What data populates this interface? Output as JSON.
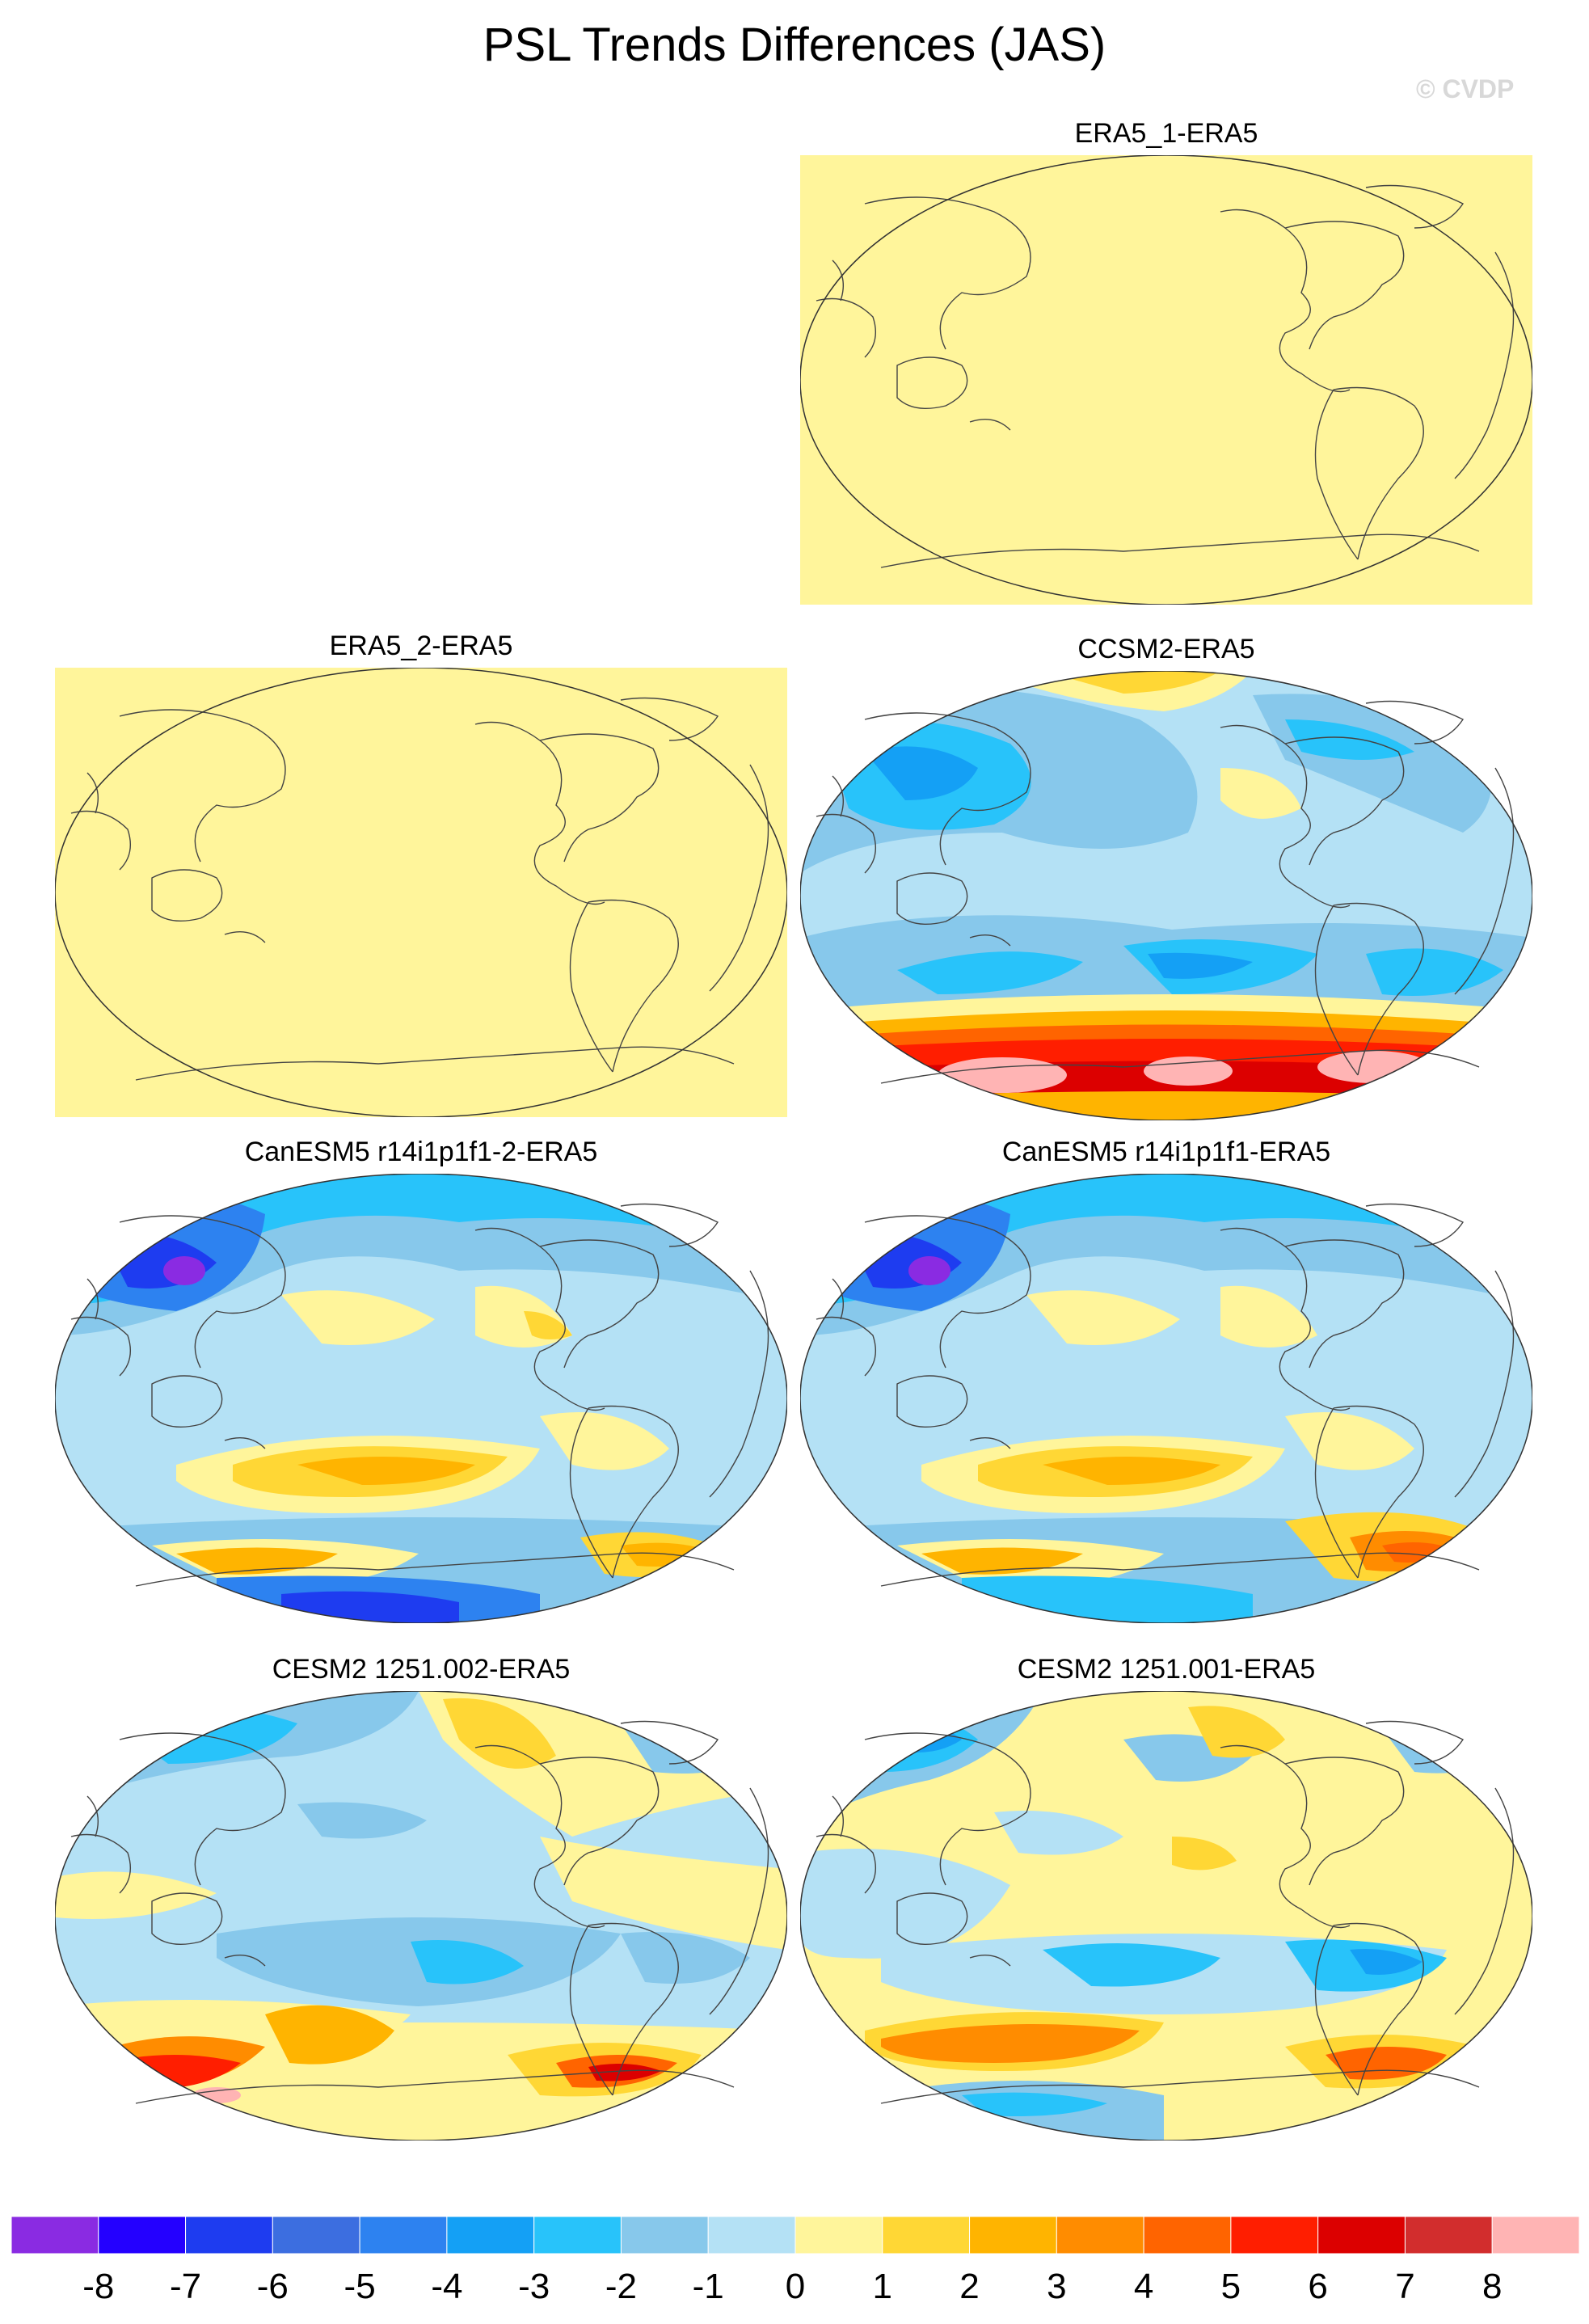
{
  "title": "PSL Trends Differences (JAS)",
  "copyright": "© CVDP",
  "panels": [
    {
      "label": "ERA5_1-ERA5",
      "fill": "flat"
    },
    {
      "label": "ERA5_2-ERA5",
      "fill": "flat"
    },
    {
      "label": "CCSM2-ERA5",
      "fill": "ccsm2"
    },
    {
      "label": "CanESM5 r14i1p1f1-2-ERA5",
      "fill": "canesm"
    },
    {
      "label": "CanESM5 r14i1p1f1-ERA5",
      "fill": "canesm"
    },
    {
      "label": "CESM2 1251.002-ERA5",
      "fill": "cesm"
    },
    {
      "label": "CESM2 1251.001-ERA5",
      "fill": "cesm"
    }
  ],
  "colorbar": {
    "colors": [
      "#8a2be2",
      "#2400ff",
      "#1e3cf0",
      "#3c6ee0",
      "#2d82f0",
      "#14a0f5",
      "#28c3fa",
      "#87c8eb",
      "#b4e1f5",
      "#fff59b",
      "#ffd735",
      "#ffb400",
      "#ff8c00",
      "#ff6400",
      "#ff1e00",
      "#dc0000",
      "#d22d2d",
      "#ffb4b4"
    ],
    "labels": [
      "-8",
      "-7",
      "-6",
      "-5",
      "-4",
      "-3",
      "-2",
      "-1",
      "0",
      "1",
      "2",
      "3",
      "4",
      "5",
      "6",
      "7",
      "8"
    ]
  }
}
